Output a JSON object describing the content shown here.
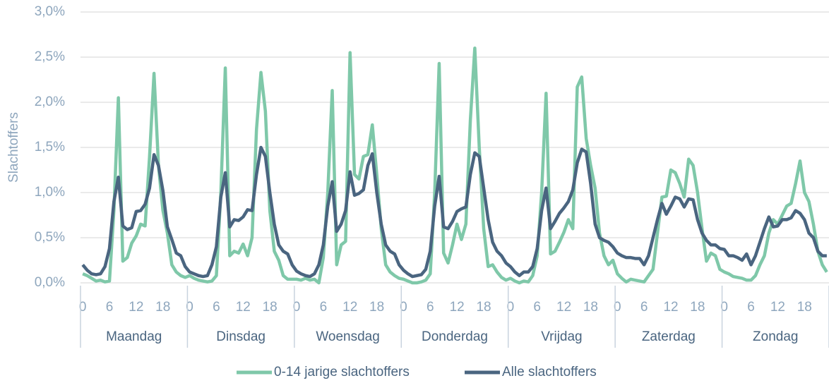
{
  "chart_data": {
    "type": "line",
    "y_label": "Slachtoffers",
    "categories": [
      "0",
      null,
      null,
      null,
      null,
      null,
      "6",
      null,
      null,
      null,
      null,
      null,
      "12",
      null,
      null,
      null,
      null,
      null,
      "18",
      null,
      null,
      null,
      null,
      null,
      "0",
      null,
      null,
      null,
      null,
      null,
      "6",
      null,
      null,
      null,
      null,
      null,
      "12",
      null,
      null,
      null,
      null,
      null,
      "18",
      null,
      null,
      null,
      null,
      null,
      "0",
      null,
      null,
      null,
      null,
      null,
      "6",
      null,
      null,
      null,
      null,
      null,
      "12",
      null,
      null,
      null,
      null,
      null,
      "18",
      null,
      null,
      null,
      null,
      null,
      "0",
      null,
      null,
      null,
      null,
      null,
      "6",
      null,
      null,
      null,
      null,
      null,
      "12",
      null,
      null,
      null,
      null,
      null,
      "18",
      null,
      null,
      null,
      null,
      null,
      "0",
      null,
      null,
      null,
      null,
      null,
      "6",
      null,
      null,
      null,
      null,
      null,
      "12",
      null,
      null,
      null,
      null,
      null,
      "18",
      null,
      null,
      null,
      null,
      null,
      "0",
      null,
      null,
      null,
      null,
      null,
      "6",
      null,
      null,
      null,
      null,
      null,
      "12",
      null,
      null,
      null,
      null,
      null,
      "18",
      null,
      null,
      null,
      null,
      null,
      "0",
      null,
      null,
      null,
      null,
      null,
      "6",
      null,
      null,
      null,
      null,
      null,
      "12",
      null,
      null,
      null,
      null,
      null,
      "18",
      null,
      null,
      null,
      null,
      null
    ],
    "day_groups": [
      "Maandag",
      "Dinsdag",
      "Woensdag",
      "Donderdag",
      "Vrijdag",
      "Zaterdag",
      "Zondag"
    ],
    "series": [
      {
        "name": "0-14 jarige slachtoffers",
        "color": "#7fc8a9",
        "values": [
          0.1,
          0.08,
          0.05,
          0.02,
          0.03,
          0.01,
          0.02,
          0.8,
          2.05,
          0.24,
          0.28,
          0.44,
          0.52,
          0.65,
          0.63,
          1.4,
          2.32,
          1.3,
          0.8,
          0.55,
          0.2,
          0.12,
          0.08,
          0.06,
          0.08,
          0.05,
          0.03,
          0.02,
          0.01,
          0.02,
          0.08,
          1.0,
          2.38,
          0.3,
          0.35,
          0.33,
          0.43,
          0.3,
          0.5,
          1.7,
          2.33,
          1.9,
          0.8,
          0.35,
          0.25,
          0.08,
          0.04,
          0.04,
          0.04,
          0.03,
          0.05,
          0.03,
          0.04,
          0.0,
          0.28,
          1.0,
          2.13,
          0.2,
          0.42,
          0.46,
          2.55,
          1.2,
          1.15,
          1.4,
          1.42,
          1.75,
          1.2,
          0.6,
          0.2,
          0.12,
          0.08,
          0.05,
          0.04,
          0.02,
          0.0,
          0.0,
          0.01,
          0.03,
          0.1,
          1.0,
          2.43,
          0.33,
          0.22,
          0.42,
          0.65,
          0.48,
          0.65,
          1.8,
          2.6,
          1.5,
          0.6,
          0.18,
          0.2,
          0.12,
          0.06,
          0.03,
          0.05,
          0.02,
          0.0,
          0.02,
          0.01,
          0.08,
          0.3,
          1.0,
          2.1,
          0.32,
          0.35,
          0.45,
          0.56,
          0.7,
          0.6,
          2.17,
          2.28,
          1.6,
          1.3,
          1.05,
          0.55,
          0.3,
          0.2,
          0.25,
          0.1,
          0.05,
          0.01,
          0.04,
          0.03,
          0.02,
          0.01,
          0.08,
          0.15,
          0.55,
          0.95,
          0.96,
          1.25,
          1.22,
          1.1,
          0.95,
          1.37,
          1.3,
          1.0,
          0.6,
          0.24,
          0.33,
          0.3,
          0.15,
          0.12,
          0.1,
          0.07,
          0.06,
          0.05,
          0.03,
          0.03,
          0.08,
          0.2,
          0.3,
          0.55,
          0.7,
          0.65,
          0.75,
          0.85,
          0.88,
          1.1,
          1.35,
          1.0,
          0.9,
          0.65,
          0.35,
          0.2,
          0.12
        ]
      },
      {
        "name": "Alle slachtoffers",
        "color": "#4a6580",
        "values": [
          0.2,
          0.14,
          0.1,
          0.09,
          0.1,
          0.18,
          0.38,
          0.9,
          1.17,
          0.63,
          0.59,
          0.61,
          0.79,
          0.8,
          0.87,
          1.05,
          1.42,
          1.3,
          1.02,
          0.62,
          0.48,
          0.33,
          0.3,
          0.18,
          0.12,
          0.1,
          0.08,
          0.07,
          0.08,
          0.2,
          0.4,
          0.95,
          1.22,
          0.62,
          0.7,
          0.69,
          0.73,
          0.81,
          0.8,
          1.2,
          1.5,
          1.4,
          1.0,
          0.65,
          0.42,
          0.35,
          0.32,
          0.2,
          0.13,
          0.1,
          0.08,
          0.07,
          0.1,
          0.2,
          0.42,
          0.85,
          1.12,
          0.57,
          0.65,
          0.8,
          1.23,
          0.97,
          0.99,
          1.03,
          1.3,
          1.43,
          1.0,
          0.65,
          0.42,
          0.35,
          0.32,
          0.2,
          0.14,
          0.1,
          0.07,
          0.08,
          0.09,
          0.15,
          0.35,
          0.85,
          1.18,
          0.62,
          0.6,
          0.68,
          0.79,
          0.82,
          0.84,
          1.2,
          1.44,
          1.4,
          1.05,
          0.7,
          0.45,
          0.35,
          0.3,
          0.22,
          0.18,
          0.12,
          0.08,
          0.12,
          0.12,
          0.18,
          0.38,
          0.8,
          1.05,
          0.6,
          0.68,
          0.77,
          0.83,
          0.9,
          1.03,
          1.33,
          1.48,
          1.45,
          1.1,
          0.65,
          0.5,
          0.47,
          0.45,
          0.4,
          0.33,
          0.3,
          0.28,
          0.28,
          0.27,
          0.27,
          0.2,
          0.3,
          0.5,
          0.7,
          0.88,
          0.76,
          0.85,
          0.95,
          0.93,
          0.84,
          0.93,
          0.92,
          0.7,
          0.55,
          0.47,
          0.42,
          0.42,
          0.38,
          0.37,
          0.3,
          0.3,
          0.28,
          0.25,
          0.32,
          0.2,
          0.3,
          0.45,
          0.6,
          0.73,
          0.62,
          0.63,
          0.7,
          0.7,
          0.72,
          0.8,
          0.77,
          0.7,
          0.55,
          0.5,
          0.35,
          0.3,
          0.3
        ]
      }
    ],
    "ylim": [
      0,
      3
    ],
    "yticks": [
      {
        "value": 0,
        "label": "0,0%"
      },
      {
        "value": 0.5,
        "label": "0,5%"
      },
      {
        "value": 1,
        "label": "1,0%"
      },
      {
        "value": 1.5,
        "label": "1,5%"
      },
      {
        "value": 2,
        "label": "2,0%"
      },
      {
        "value": 2.5,
        "label": "2,5%"
      },
      {
        "value": 3,
        "label": "3,0%"
      }
    ],
    "grid": true,
    "legend": "bottom"
  }
}
